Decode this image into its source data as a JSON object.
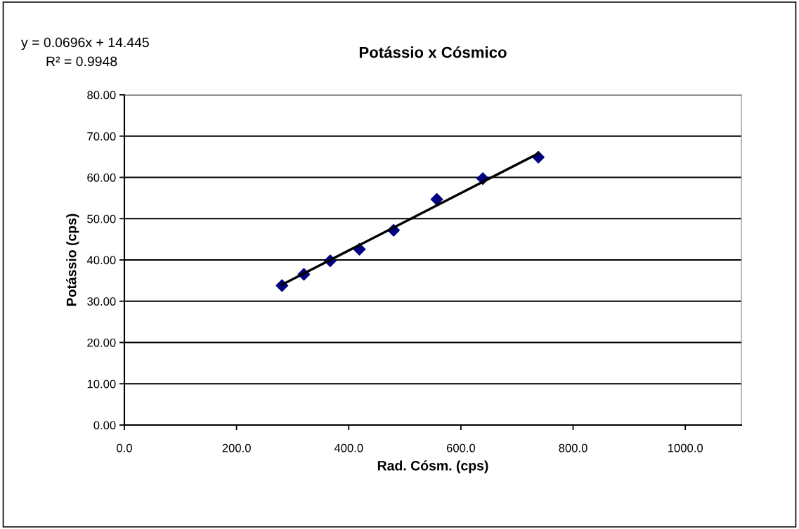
{
  "chart_data": {
    "type": "scatter",
    "title": "Potássio x Cósmico",
    "xlabel": "Rad. Cósm. (cps)",
    "ylabel": "Potássio (cps)",
    "xlim": [
      0,
      1100
    ],
    "xticks": [
      {
        "value": 0,
        "label": "0.0"
      },
      {
        "value": 200,
        "label": "200.0"
      },
      {
        "value": 400,
        "label": "400.0"
      },
      {
        "value": 600,
        "label": "600.0"
      },
      {
        "value": 800,
        "label": "800.0"
      },
      {
        "value": 1000,
        "label": "1000.0"
      }
    ],
    "ylim": [
      0,
      80
    ],
    "yticks": [
      {
        "value": 0,
        "label": "0.00"
      },
      {
        "value": 10,
        "label": "10.00"
      },
      {
        "value": 20,
        "label": "20.00"
      },
      {
        "value": 30,
        "label": "30.00"
      },
      {
        "value": 40,
        "label": "40.00"
      },
      {
        "value": 50,
        "label": "50.00"
      },
      {
        "value": 60,
        "label": "60.00"
      },
      {
        "value": 70,
        "label": "70.00"
      },
      {
        "value": 80,
        "label": "80.00"
      }
    ],
    "grid": "y",
    "series": [
      {
        "color": "#000080",
        "marker": "diamond",
        "x": [
          281,
          320,
          367,
          419,
          480,
          557,
          639,
          738
        ],
        "values": [
          33.8,
          36.5,
          39.8,
          42.6,
          47.2,
          54.7,
          59.7,
          64.9
        ]
      },
      {
        "type": "line",
        "color": "#000000",
        "line_style": "solid",
        "marker": "none",
        "x": [
          281,
          738
        ],
        "values": [
          34.0,
          65.8
        ]
      }
    ],
    "annotations": [
      "y = 0.0696x + 14.445",
      "R² = 0.9948"
    ]
  }
}
